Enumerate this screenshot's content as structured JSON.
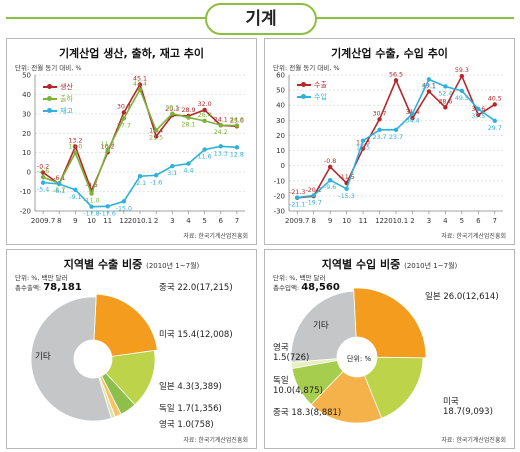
{
  "page_title": "기계",
  "colors": {
    "accent": "#8cbf3f",
    "red": "#b5272b",
    "green": "#7ab335",
    "cyan": "#2fb1dc",
    "orange": "#f39c1e",
    "lime": "#bdd34a",
    "gray": "#c4c6c8"
  },
  "source": "자료: 한국기계산업진흥회",
  "chart_data": [
    {
      "type": "line",
      "title": "기계산업 생산, 출하, 재고 추이",
      "unit": "단위: 전월 동기 대비, %",
      "x": [
        "2009.7",
        "8",
        "9",
        "10",
        "11",
        "12",
        "2010.1",
        "2",
        "3",
        "4",
        "5",
        "6",
        "7"
      ],
      "ylim": [
        -20,
        50
      ],
      "yticks": [
        -20,
        -10,
        0,
        10,
        20,
        30,
        40,
        50
      ],
      "series": [
        {
          "name": "생산",
          "color": "#b5272b",
          "values": [
            -0.2,
            -6.1,
            13.2,
            -9.6,
            10.2,
            30.7,
            45.1,
            18.4,
            29.3,
            28.9,
            32.0,
            24.1,
            23.6
          ]
        },
        {
          "name": "출하",
          "color": "#7ab335",
          "values": [
            -2.6,
            -5.7,
            10.0,
            -11.0,
            11.3,
            27.7,
            42.4,
            21.5,
            30.1,
            28.1,
            26.4,
            24.2,
            24.0
          ]
        },
        {
          "name": "재고",
          "color": "#2fb1dc",
          "values": [
            -5.4,
            -6.1,
            -9.1,
            -17.8,
            -17.6,
            -15.0,
            -2.1,
            -1.6,
            3.1,
            4.4,
            11.6,
            13.3,
            12.8
          ]
        }
      ]
    },
    {
      "type": "line",
      "title": "기계산업 수출, 수입 추이",
      "unit": "단위: 전월 동기 대비, %",
      "x": [
        "2009.7",
        "8",
        "9",
        "10",
        "11",
        "12",
        "2010.1",
        "2",
        "3",
        "4",
        "5",
        "6",
        "7"
      ],
      "ylim": [
        -30,
        60
      ],
      "yticks": [
        -30,
        -20,
        -10,
        0,
        10,
        20,
        30,
        40,
        50,
        60
      ],
      "series": [
        {
          "name": "수출",
          "color": "#b5272b",
          "values": [
            -21.3,
            -20.2,
            -0.8,
            -11.5,
            11.3,
            30.7,
            56.5,
            31.4,
            49.1,
            38.6,
            59.3,
            33.6,
            40.5
          ]
        },
        {
          "name": "수입",
          "color": "#2fb1dc",
          "values": [
            -21.1,
            -19.7,
            -9.6,
            -15.3,
            16.5,
            23.7,
            23.7,
            34.4,
            57.1,
            52.4,
            49.5,
            37.5,
            29.7
          ]
        }
      ]
    },
    {
      "type": "pie",
      "title": "지역별 수출 비중",
      "period": "(2010년 1~7월)",
      "unit": "단위: %, 백만 달러",
      "total_label": "총수출액:",
      "total_value": "78,181",
      "slices": [
        {
          "name": "중국",
          "value": 22.0,
          "amount": "17,215",
          "color": "#f39c1e",
          "label": "중국 22.0(17,215)"
        },
        {
          "name": "미국",
          "value": 15.4,
          "amount": "12,008",
          "color": "#bdd34a",
          "label": "미국 15.4(12,008)"
        },
        {
          "name": "일본",
          "value": 4.3,
          "amount": "3,389",
          "color": "#8cc04a",
          "label": "일본 4.3(3,389)"
        },
        {
          "name": "독일",
          "value": 1.7,
          "amount": "1,356",
          "color": "#f6c36b",
          "label": "독일 1.7(1,356)"
        },
        {
          "name": "영국",
          "value": 1.0,
          "amount": "758",
          "color": "#d9e6a6",
          "label": "영국 1.0(758)"
        },
        {
          "name": "기타",
          "value": 55.6,
          "color": "#c4c6c8",
          "label": "기타"
        }
      ]
    },
    {
      "type": "pie",
      "title": "지역별 수입 비중",
      "period": "(2010년 1~7월)",
      "unit": "단위: %, 백만 달러",
      "center_label": "단위: %",
      "total_label": "총수입액:",
      "total_value": "48,560",
      "slices": [
        {
          "name": "일본",
          "value": 26.0,
          "amount": "12,614",
          "color": "#f39c1e",
          "label": "일본 26.0(12,614)"
        },
        {
          "name": "미국",
          "value": 18.7,
          "amount": "9,093",
          "color": "#bdd34a",
          "label": "미국 18.7(9,093)"
        },
        {
          "name": "중국",
          "value": 18.3,
          "amount": "8,881",
          "color": "#f5b24a",
          "label": "중국 18.3(8,881)"
        },
        {
          "name": "독일",
          "value": 10.0,
          "amount": "4,875",
          "color": "#a7cd4f",
          "label": "독일 10.0(4,875)"
        },
        {
          "name": "영국",
          "value": 1.5,
          "amount": "726",
          "color": "#e7efc0",
          "label": "영국 1.5(726)"
        },
        {
          "name": "기타",
          "value": 25.5,
          "color": "#c4c6c8",
          "label": "기타"
        }
      ]
    }
  ]
}
